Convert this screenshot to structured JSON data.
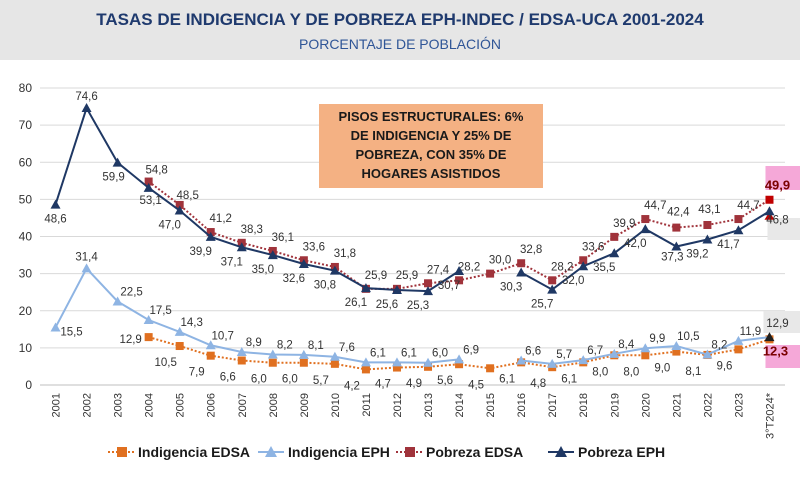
{
  "header": {
    "title": "TASAS DE INDIGENCIA Y DE POBREZA EPH-INDEC / EDSA-UCA 2001-2024",
    "subtitle": "PORCENTAJE DE POBLACIÓN"
  },
  "annotation": "PISOS ESTRUCTURALES: 6% DE INDIGENCIA Y 25% DE POBREZA, CON 35% DE HOGARES ASISTIDOS",
  "chart_data": {
    "type": "line",
    "title": "TASAS DE INDIGENCIA Y DE POBREZA EPH-INDEC / EDSA-UCA 2001-2024",
    "subtitle": "PORCENTAJE DE POBLACIÓN",
    "categories": [
      "2001",
      "2002",
      "2003",
      "2004",
      "2005",
      "2006",
      "2007",
      "2008",
      "2009",
      "2010",
      "2011",
      "2012",
      "2013",
      "2014",
      "2015",
      "2016",
      "2017",
      "2018",
      "2019",
      "2020",
      "2021",
      "2022",
      "2023",
      "3°T2024*"
    ],
    "ylim": [
      0,
      80
    ],
    "yticks": [
      0,
      10,
      20,
      30,
      40,
      50,
      60,
      70,
      80
    ],
    "grid": true,
    "legend_position": "bottom",
    "series": [
      {
        "name": "Indigencia EDSA",
        "color": "#e07020",
        "marker": "square",
        "dashed": true,
        "values": [
          null,
          null,
          null,
          12.9,
          10.5,
          7.9,
          6.6,
          6.0,
          6.0,
          5.7,
          4.2,
          4.7,
          4.9,
          5.6,
          4.5,
          6.1,
          4.8,
          6.1,
          8.0,
          8.0,
          9.0,
          8.1,
          9.6,
          12.3
        ],
        "labels": [
          null,
          null,
          null,
          "12,9",
          "10,5",
          "7,9",
          "6,6",
          "6,0",
          "6,0",
          "5,7",
          "4,2",
          "4,7",
          "4,9",
          "5,6",
          "4,5",
          "6,1",
          "4,8",
          "6,1",
          "8,0",
          "8,0",
          "9,0",
          "8,1",
          "9,6",
          "12,3"
        ]
      },
      {
        "name": "Indigencia EPH",
        "color": "#8eb4e3",
        "marker": "triangle",
        "dashed": false,
        "values": [
          15.5,
          31.4,
          22.5,
          17.5,
          14.3,
          10.7,
          8.9,
          8.2,
          8.1,
          7.6,
          6.1,
          6.1,
          6.0,
          6.9,
          null,
          6.6,
          5.7,
          6.7,
          8.4,
          9.9,
          10.5,
          8.2,
          11.9,
          12.9
        ],
        "labels": [
          "15,5",
          "31,4",
          "22,5",
          "17,5",
          "14,3",
          "10,7",
          "8,9",
          "8,2",
          "8,1",
          "7,6",
          "6,1",
          "6,1",
          "6,0",
          "6,9",
          null,
          "6,6",
          "5,7",
          "6,7",
          "8,4",
          "9,9",
          "10,5",
          "8,2",
          "11,9",
          "12,9"
        ]
      },
      {
        "name": "Pobreza EDSA",
        "color": "#a0333b",
        "marker": "square",
        "dashed": true,
        "values": [
          null,
          null,
          null,
          54.8,
          48.5,
          41.2,
          38.3,
          36.1,
          33.6,
          31.8,
          25.9,
          25.9,
          27.4,
          28.2,
          30.0,
          32.8,
          28.2,
          33.6,
          39.9,
          44.7,
          42.4,
          43.1,
          44.7,
          49.9
        ],
        "labels": [
          null,
          null,
          null,
          "54,8",
          "48,5",
          "41,2",
          "38,3",
          "36,1",
          "33,6",
          "31,8",
          "25,9",
          "25,9",
          "27,4",
          "28,2",
          "30,0",
          "32,8",
          "28,2",
          "33,6",
          "39,9",
          "44,7",
          "42,4",
          "43,1",
          "44,7",
          "49,9"
        ]
      },
      {
        "name": "Pobreza EPH",
        "color": "#1f3864",
        "marker": "triangle",
        "dashed": false,
        "values": [
          48.6,
          74.6,
          59.9,
          53.1,
          47.0,
          39.9,
          37.1,
          35.0,
          32.6,
          30.8,
          26.1,
          25.6,
          25.3,
          30.7,
          null,
          30.3,
          25.7,
          32.0,
          35.5,
          42.0,
          37.3,
          39.2,
          41.7,
          46.8
        ],
        "labels": [
          "48,6",
          "74,6",
          "59,9",
          "53,1",
          "47,0",
          "39,9",
          "37,1",
          "35,0",
          "32,6",
          "30,8",
          "26,1",
          "25,6",
          "25,3",
          "30,7",
          null,
          "30,3",
          "25,7",
          "32,0",
          "35,5",
          "42,0",
          "37,3",
          "39,2",
          "41,7",
          "46,8"
        ]
      }
    ]
  }
}
